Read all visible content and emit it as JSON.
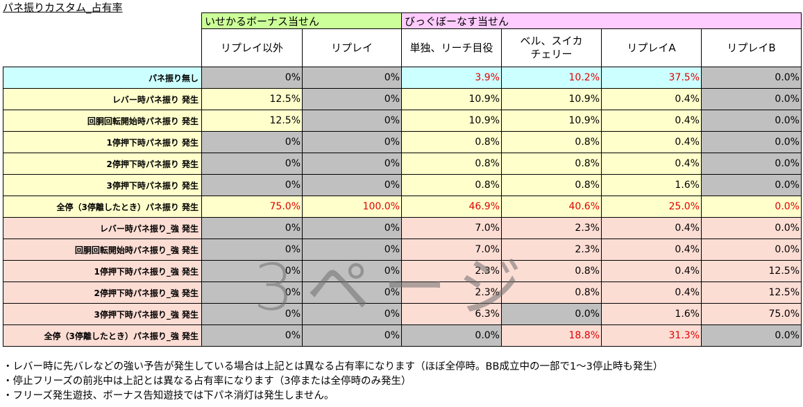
{
  "title": "パネ振りカスタム_占有率",
  "table": {
    "groups": [
      "いせかるボーナス当せん",
      "びっぐぼーなす当せん"
    ],
    "columns": [
      "リプレイ以外",
      "リプレイ",
      "単独、リーチ目役",
      "ベル、スイカ\nチェリー",
      "リプレイA",
      "リプレイB"
    ],
    "rows": [
      [
        "パネ振り無し",
        "0%",
        "0%",
        "3.9%",
        "10.2%",
        "37.5%",
        "0.0%"
      ],
      [
        "レバー時パネ振り 発生",
        "12.5%",
        "0%",
        "10.9%",
        "10.9%",
        "0.4%",
        "0.0%"
      ],
      [
        "回胴回転開始時パネ振り 発生",
        "12.5%",
        "0%",
        "10.9%",
        "10.9%",
        "0.4%",
        "0.0%"
      ],
      [
        "1停押下時パネ振り 発生",
        "0%",
        "0%",
        "0.8%",
        "0.8%",
        "0.4%",
        "0.0%"
      ],
      [
        "2停押下時パネ振り 発生",
        "0%",
        "0%",
        "0.8%",
        "0.8%",
        "0.4%",
        "0.0%"
      ],
      [
        "3停押下時パネ振り 発生",
        "0%",
        "0%",
        "0.8%",
        "0.8%",
        "1.6%",
        "0.0%"
      ],
      [
        "全停（3停離したとき）パネ振り 発生",
        "75.0%",
        "100.0%",
        "46.9%",
        "40.6%",
        "25.0%",
        "0.0%"
      ],
      [
        "レバー時パネ振り_強 発生",
        "0%",
        "0%",
        "7.0%",
        "2.3%",
        "0.4%",
        "0.0%"
      ],
      [
        "回胴回転開始時パネ振り_強 発生",
        "0%",
        "0%",
        "7.0%",
        "2.3%",
        "0.4%",
        "0.0%"
      ],
      [
        "1停押下時パネ振り_強 発生",
        "0%",
        "0%",
        "2.3%",
        "0.8%",
        "0.4%",
        "12.5%"
      ],
      [
        "2停押下時パネ振り_強 発生",
        "0%",
        "0%",
        "2.3%",
        "0.8%",
        "0.4%",
        "12.5%"
      ],
      [
        "3停押下時パネ振り_強 発生",
        "0%",
        "0%",
        "6.3%",
        "0.0%",
        "1.6%",
        "75.0%"
      ],
      [
        "全停（3停離したとき）パネ振り_強 発生",
        "0%",
        "0%",
        "0.0%",
        "18.8%",
        "31.3%",
        "0.0%"
      ]
    ]
  },
  "watermark": "3ページ",
  "notes": [
    "・レバー時に先バレなどの強い予告が発生している場合は上記とは異なる占有率になります（ほぼ全停時。BB成立中の一部で1～3停止時も発生）",
    "・停止フリーズの前兆中は上記とは異なる占有率になります（3停または全停時のみ発生）",
    "・フリーズ発生遊技、ボーナス告知遊技では下パネ消灯は発生しません。"
  ]
}
